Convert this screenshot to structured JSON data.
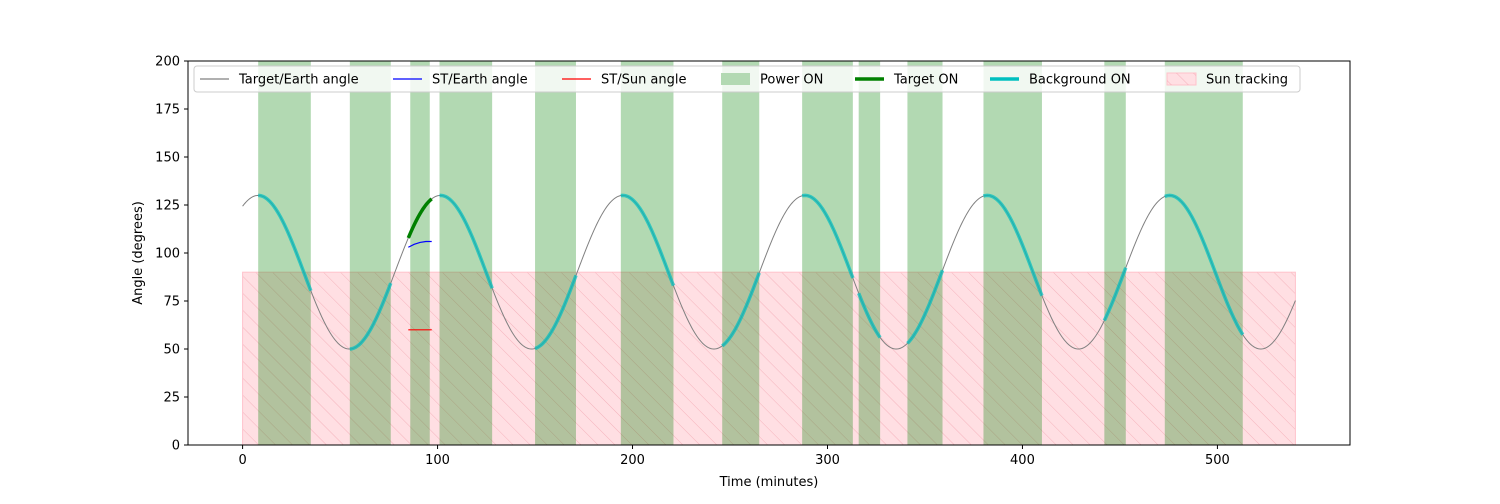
{
  "chart_data": {
    "type": "line",
    "xlabel": "Time (minutes)",
    "ylabel": "Angle (degrees)",
    "xlim": [
      -28,
      568
    ],
    "ylim": [
      0,
      200
    ],
    "xticks": [
      0,
      100,
      200,
      300,
      400,
      500
    ],
    "yticks": [
      0,
      25,
      50,
      75,
      100,
      125,
      150,
      175,
      200
    ],
    "grid": false,
    "legend_position": "top (single row)",
    "legend": [
      {
        "label": "Target/Earth angle",
        "kind": "line",
        "color": "#808080"
      },
      {
        "label": "ST/Earth angle",
        "kind": "line",
        "color": "#0000ff"
      },
      {
        "label": "ST/Sun angle",
        "kind": "line",
        "color": "#ff0000"
      },
      {
        "label": "Power ON",
        "kind": "patch",
        "color": "#b3d9b3"
      },
      {
        "label": "Target ON",
        "kind": "thickline",
        "color": "#008000"
      },
      {
        "label": "Background ON",
        "kind": "thickline",
        "color": "#00bfbf"
      },
      {
        "label": "Sun tracking",
        "kind": "hatch",
        "color": "#ffdfe3"
      }
    ],
    "target_earth_curve": {
      "description": "sinusoid",
      "mean": 90,
      "amplitude": 40,
      "period_minutes": 93.5,
      "peak_at_minutes": 8,
      "x_range": [
        0,
        540
      ]
    },
    "sun_tracking": {
      "x_range": [
        0,
        540
      ],
      "y_range": [
        0,
        90
      ]
    },
    "power_on_intervals": [
      [
        8,
        35
      ],
      [
        55,
        76
      ],
      [
        86,
        96
      ],
      [
        101,
        128
      ],
      [
        150,
        171
      ],
      [
        194,
        221
      ],
      [
        246,
        265
      ],
      [
        287,
        313
      ],
      [
        316,
        327
      ],
      [
        341,
        359
      ],
      [
        380,
        410
      ],
      [
        442,
        453
      ],
      [
        473,
        513
      ]
    ],
    "background_on_intervals": [
      [
        8,
        35
      ],
      [
        55,
        76
      ],
      [
        101,
        128
      ],
      [
        150,
        171
      ],
      [
        194,
        221
      ],
      [
        246,
        265
      ],
      [
        287,
        313
      ],
      [
        316,
        327
      ],
      [
        341,
        359
      ],
      [
        380,
        410
      ],
      [
        442,
        453
      ],
      [
        473,
        513
      ]
    ],
    "target_on_intervals": [
      [
        85,
        97
      ]
    ],
    "st_earth_segment": {
      "x": [
        85,
        88,
        91,
        94,
        97
      ],
      "y": [
        103,
        104.5,
        105.5,
        106,
        106
      ]
    },
    "st_sun_segment": {
      "x": [
        85,
        97
      ],
      "y": [
        60,
        60
      ]
    }
  }
}
